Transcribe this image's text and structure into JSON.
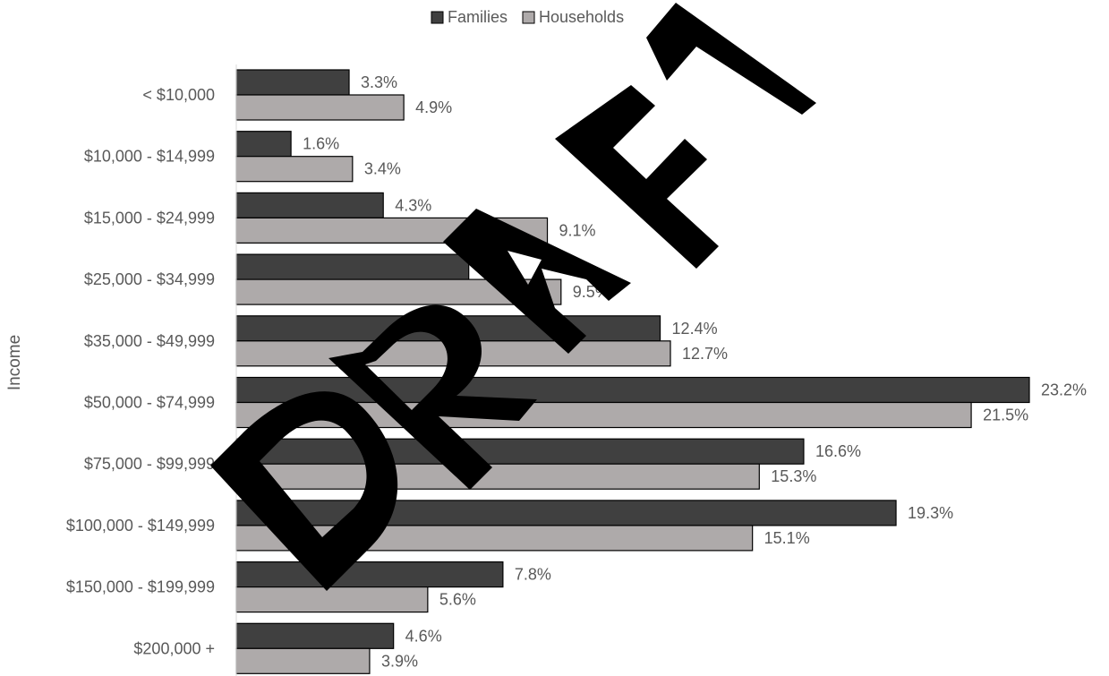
{
  "chart_data": {
    "type": "bar",
    "orientation": "horizontal",
    "title": "",
    "xlabel": "",
    "ylabel": "Income",
    "xlim": [
      0,
      23.2
    ],
    "grid": false,
    "legend_position": "top-center",
    "categories": [
      "< $10,000",
      "$10,000 - $14,999",
      "$15,000 - $24,999",
      "$25,000 - $34,999",
      "$35,000 - $49,999",
      "$50,000 - $74,999",
      "$75,000 - $99,999",
      "$100,000 - $149,999",
      "$150,000 - $199,999",
      "$200,000 +"
    ],
    "series": [
      {
        "name": "Families",
        "color": "#404040",
        "values": [
          3.3,
          1.6,
          4.3,
          6.8,
          12.4,
          23.2,
          16.6,
          19.3,
          7.8,
          4.6
        ],
        "labels": [
          "3.3%",
          "1.6%",
          "4.3%",
          "6.8%",
          "12.4%",
          "23.2%",
          "16.6%",
          "19.3%",
          "7.8%",
          "4.6%"
        ]
      },
      {
        "name": "Households",
        "color": "#aeaaaa",
        "values": [
          4.9,
          3.4,
          9.1,
          9.5,
          12.7,
          21.5,
          15.3,
          15.1,
          5.6,
          3.9
        ],
        "labels": [
          "4.9%",
          "3.4%",
          "9.1%",
          "9.5%",
          "12.7%",
          "21.5%",
          "15.3%",
          "15.1%",
          "5.6%",
          "3.9%"
        ]
      }
    ]
  },
  "watermark": {
    "text": "DRAFT"
  }
}
